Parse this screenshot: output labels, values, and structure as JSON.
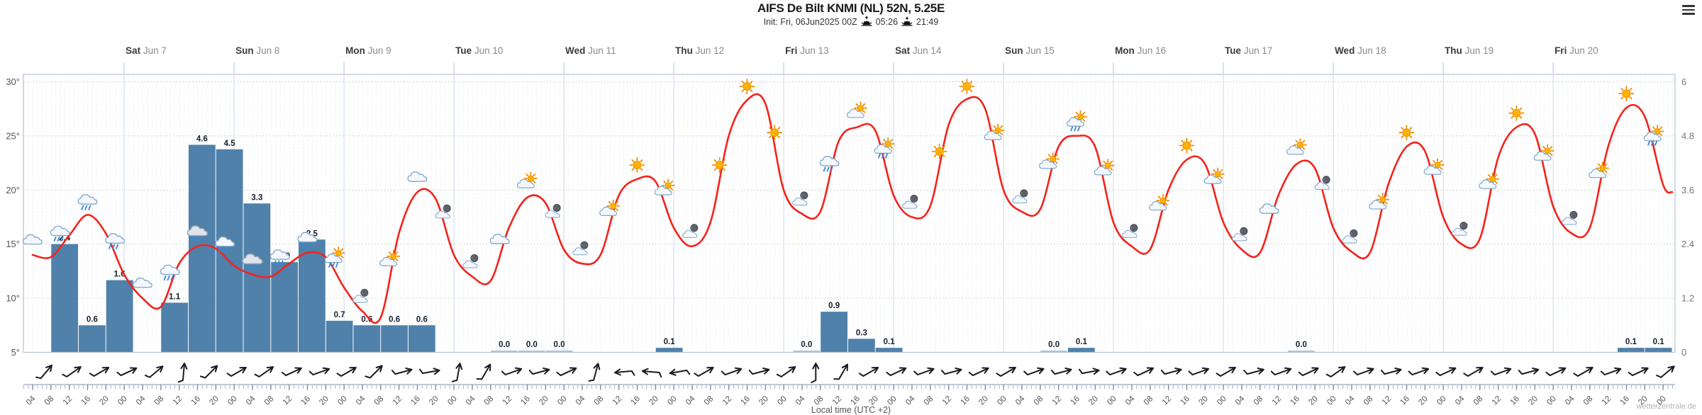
{
  "app": {
    "title": "AIFS De Bilt KNMI (NL) 52N, 5.25E",
    "init_line": "Init: Fri, 06Jun2025 00Z",
    "sunrise": "05:26",
    "sunset": "21:49",
    "watermark": "wetterzentrale.de"
  },
  "axes": {
    "x_label": "Local time (UTC +2)",
    "left_ticks": [
      "30°",
      "25°",
      "20°",
      "15°",
      "10°",
      "5°"
    ],
    "left_values": [
      30,
      25,
      20,
      15,
      10,
      5
    ],
    "right_ticks": [
      "6",
      "4.8",
      "3.6",
      "2.4",
      "1.2",
      "0"
    ],
    "right_values": [
      6,
      4.8,
      3.6,
      2.4,
      1.2,
      0
    ],
    "tick_label_cycle": [
      "04",
      "08",
      "12",
      "16",
      "20",
      "00"
    ],
    "first_tick_hour": 4,
    "last_tick_hour": 360,
    "days": [
      {
        "name": "Sat",
        "date": "Jun 7"
      },
      {
        "name": "Sun",
        "date": "Jun 8"
      },
      {
        "name": "Mon",
        "date": "Jun 9"
      },
      {
        "name": "Tue",
        "date": "Jun 10"
      },
      {
        "name": "Wed",
        "date": "Jun 11"
      },
      {
        "name": "Thu",
        "date": "Jun 12"
      },
      {
        "name": "Fri",
        "date": "Jun 13"
      },
      {
        "name": "Sat",
        "date": "Jun 14"
      },
      {
        "name": "Sun",
        "date": "Jun 15"
      },
      {
        "name": "Mon",
        "date": "Jun 16"
      },
      {
        "name": "Tue",
        "date": "Jun 17"
      },
      {
        "name": "Wed",
        "date": "Jun 18"
      },
      {
        "name": "Thu",
        "date": "Jun 19"
      },
      {
        "name": "Fri",
        "date": "Jun 20"
      }
    ]
  },
  "chart_data": [
    {
      "type": "line",
      "name": "2m temperature",
      "unit": "°C",
      "axis": "left",
      "ylim": [
        5,
        30
      ],
      "color": "#f5221b",
      "hours": [
        4,
        8,
        12,
        16,
        20,
        24,
        28,
        32,
        36,
        40,
        44,
        48,
        52,
        56,
        60,
        64,
        68,
        72,
        76,
        80,
        84,
        88,
        92,
        96,
        100,
        104,
        108,
        112,
        116,
        120,
        124,
        128,
        132,
        136,
        140,
        144,
        148,
        152,
        156,
        160,
        164,
        168,
        172,
        176,
        180,
        184,
        188,
        192,
        196,
        200,
        204,
        208,
        212,
        216,
        220,
        224,
        228,
        232,
        236,
        240,
        244,
        248,
        252,
        256,
        260,
        264,
        268,
        272,
        276,
        280,
        284,
        288,
        292,
        296,
        300,
        304,
        308,
        312,
        316,
        320,
        324,
        328,
        332,
        336,
        340,
        344,
        348,
        352,
        356,
        360,
        362
      ],
      "values": [
        14.0,
        13.8,
        15.8,
        17.7,
        16.0,
        12.2,
        10.0,
        9.2,
        13.2,
        14.8,
        14.6,
        13.0,
        12.2,
        12.0,
        13.2,
        14.2,
        13.8,
        11.0,
        8.8,
        8.2,
        16.0,
        19.8,
        19.2,
        14.0,
        12.0,
        11.6,
        16.5,
        19.3,
        18.8,
        14.5,
        13.2,
        14.0,
        19.5,
        21.0,
        20.8,
        16.5,
        14.8,
        17.0,
        25.0,
        28.3,
        28.0,
        20.0,
        17.8,
        18.0,
        24.5,
        25.8,
        25.5,
        19.5,
        17.5,
        18.5,
        26.0,
        28.4,
        27.5,
        20.0,
        18.0,
        18.2,
        24.0,
        25.0,
        24.0,
        17.0,
        14.8,
        14.5,
        20.0,
        22.8,
        22.4,
        17.0,
        14.5,
        14.2,
        19.5,
        22.4,
        22.0,
        16.5,
        14.3,
        14.2,
        20.5,
        24.0,
        23.6,
        17.5,
        15.0,
        15.5,
        23.0,
        25.8,
        25.2,
        18.5,
        16.0,
        16.5,
        24.0,
        27.6,
        26.8,
        20.5,
        19.8
      ]
    },
    {
      "type": "bar",
      "name": "6h precipitation",
      "unit": "mm",
      "axis": "right",
      "ylim": [
        0,
        6
      ],
      "color": "#4f81ab",
      "zero_color": "#a9c6e2",
      "slot_hours": 6,
      "slots": [
        [
          8,
          2.4
        ],
        [
          14,
          0.6
        ],
        [
          20,
          1.6
        ],
        [
          32,
          1.1
        ],
        [
          38,
          4.6
        ],
        [
          44,
          4.5
        ],
        [
          50,
          3.3
        ],
        [
          56,
          2.0
        ],
        [
          62,
          2.5
        ],
        [
          68,
          0.7
        ],
        [
          74,
          0.6
        ],
        [
          80,
          0.6
        ],
        [
          86,
          0.6
        ],
        [
          104,
          0.0
        ],
        [
          110,
          0.0
        ],
        [
          116,
          0.0
        ],
        [
          140,
          0.1
        ],
        [
          170,
          0.0
        ],
        [
          176,
          0.9
        ],
        [
          182,
          0.3
        ],
        [
          188,
          0.1
        ],
        [
          224,
          0.0
        ],
        [
          230,
          0.1
        ],
        [
          278,
          0.0
        ],
        [
          350,
          0.1
        ],
        [
          356,
          0.1
        ]
      ]
    }
  ],
  "weather_icons": [
    [
      4,
      "cloud"
    ],
    [
      10,
      "rain"
    ],
    [
      16,
      "rain"
    ],
    [
      22,
      "rain"
    ],
    [
      28,
      "cloud"
    ],
    [
      34,
      "rain"
    ],
    [
      40,
      "rain2"
    ],
    [
      46,
      "rain"
    ],
    [
      52,
      "rain2"
    ],
    [
      58,
      "rain"
    ],
    [
      64,
      "rain"
    ],
    [
      70,
      "sunrain"
    ],
    [
      76,
      "mooncloud"
    ],
    [
      82,
      "suncloud"
    ],
    [
      88,
      "cloud"
    ],
    [
      94,
      "mooncloud"
    ],
    [
      100,
      "mooncloud"
    ],
    [
      106,
      "cloud"
    ],
    [
      112,
      "suncloud"
    ],
    [
      118,
      "mooncloud"
    ],
    [
      124,
      "mooncloud"
    ],
    [
      130,
      "suncloud"
    ],
    [
      136,
      "sun"
    ],
    [
      142,
      "suncloud"
    ],
    [
      148,
      "mooncloud"
    ],
    [
      154,
      "sun"
    ],
    [
      160,
      "sun"
    ],
    [
      166,
      "sun"
    ],
    [
      172,
      "mooncloud"
    ],
    [
      178,
      "rain"
    ],
    [
      184,
      "suncloud"
    ],
    [
      190,
      "sunrain"
    ],
    [
      196,
      "mooncloud"
    ],
    [
      202,
      "sun"
    ],
    [
      208,
      "sun"
    ],
    [
      214,
      "suncloud"
    ],
    [
      220,
      "mooncloud"
    ],
    [
      226,
      "suncloud"
    ],
    [
      232,
      "sunrain"
    ],
    [
      238,
      "suncloud"
    ],
    [
      244,
      "mooncloud"
    ],
    [
      250,
      "suncloud"
    ],
    [
      256,
      "sun"
    ],
    [
      262,
      "suncloud"
    ],
    [
      268,
      "mooncloud"
    ],
    [
      274,
      "cloud"
    ],
    [
      280,
      "suncloud"
    ],
    [
      286,
      "mooncloud"
    ],
    [
      292,
      "mooncloud"
    ],
    [
      298,
      "suncloud"
    ],
    [
      304,
      "sun"
    ],
    [
      310,
      "suncloud"
    ],
    [
      316,
      "mooncloud"
    ],
    [
      322,
      "suncloud"
    ],
    [
      328,
      "sun"
    ],
    [
      334,
      "suncloud"
    ],
    [
      340,
      "mooncloud"
    ],
    [
      346,
      "suncloud"
    ],
    [
      352,
      "sun"
    ],
    [
      358,
      "sunrain"
    ]
  ],
  "wind_barbs": [
    [
      4,
      -50
    ],
    [
      10,
      -35
    ],
    [
      16,
      -30
    ],
    [
      22,
      -25
    ],
    [
      28,
      -40
    ],
    [
      34,
      -85
    ],
    [
      40,
      -45
    ],
    [
      46,
      -30
    ],
    [
      52,
      -35
    ],
    [
      58,
      -25
    ],
    [
      64,
      -20
    ],
    [
      70,
      -30
    ],
    [
      76,
      -45
    ],
    [
      82,
      -15
    ],
    [
      88,
      -10
    ],
    [
      94,
      -80
    ],
    [
      100,
      -60
    ],
    [
      106,
      -20
    ],
    [
      112,
      -15
    ],
    [
      118,
      -25
    ],
    [
      124,
      -75
    ],
    [
      130,
      175
    ],
    [
      136,
      185
    ],
    [
      142,
      170
    ],
    [
      148,
      -30
    ],
    [
      154,
      -20
    ],
    [
      160,
      -15
    ],
    [
      166,
      -35
    ],
    [
      172,
      -90
    ],
    [
      178,
      -60
    ],
    [
      184,
      -30
    ],
    [
      190,
      -25
    ],
    [
      196,
      -20
    ],
    [
      202,
      -15
    ],
    [
      208,
      -25
    ],
    [
      214,
      -30
    ],
    [
      220,
      -20
    ],
    [
      226,
      -15
    ],
    [
      232,
      -10
    ],
    [
      238,
      -20
    ],
    [
      244,
      -25
    ],
    [
      250,
      -15
    ],
    [
      256,
      -20
    ],
    [
      262,
      -30
    ],
    [
      268,
      -15
    ],
    [
      274,
      -20
    ],
    [
      280,
      -25
    ],
    [
      286,
      -35
    ],
    [
      292,
      -20
    ],
    [
      298,
      -15
    ],
    [
      304,
      -20
    ],
    [
      310,
      -25
    ],
    [
      316,
      -30
    ],
    [
      322,
      -20
    ],
    [
      328,
      -15
    ],
    [
      334,
      -25
    ],
    [
      340,
      -30
    ],
    [
      346,
      -20
    ],
    [
      352,
      -25
    ],
    [
      358,
      -40
    ]
  ]
}
